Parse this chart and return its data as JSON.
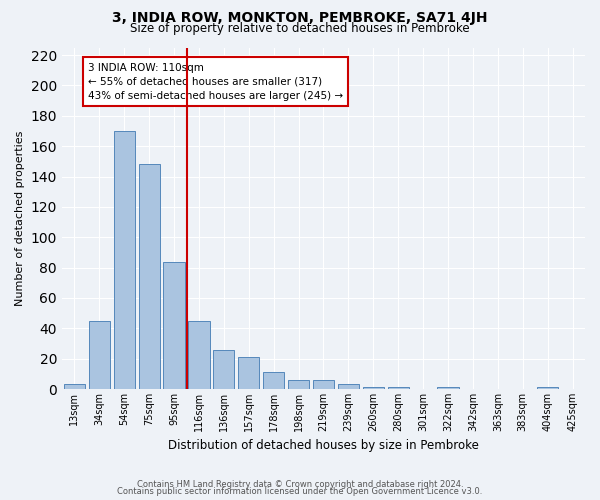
{
  "title": "3, INDIA ROW, MONKTON, PEMBROKE, SA71 4JH",
  "subtitle": "Size of property relative to detached houses in Pembroke",
  "xlabel": "Distribution of detached houses by size in Pembroke",
  "ylabel": "Number of detached properties",
  "bar_labels": [
    "13sqm",
    "34sqm",
    "54sqm",
    "75sqm",
    "95sqm",
    "116sqm",
    "136sqm",
    "157sqm",
    "178sqm",
    "198sqm",
    "219sqm",
    "239sqm",
    "260sqm",
    "280sqm",
    "301sqm",
    "322sqm",
    "342sqm",
    "363sqm",
    "383sqm",
    "404sqm",
    "425sqm"
  ],
  "bar_values": [
    3,
    45,
    170,
    148,
    84,
    45,
    26,
    21,
    11,
    6,
    6,
    3,
    1,
    1,
    0,
    1,
    0,
    0,
    0,
    1,
    0
  ],
  "bar_color": "#aac4e0",
  "bar_edgecolor": "#5588bb",
  "vline_x": 4.52,
  "vline_color": "#cc0000",
  "annotation_text": "3 INDIA ROW: 110sqm\n← 55% of detached houses are smaller (317)\n43% of semi-detached houses are larger (245) →",
  "annotation_box_edgecolor": "#cc0000",
  "ylim": [
    0,
    225
  ],
  "yticks": [
    0,
    20,
    40,
    60,
    80,
    100,
    120,
    140,
    160,
    180,
    200,
    220
  ],
  "background_color": "#eef2f7",
  "grid_color": "#ffffff",
  "footer_line1": "Contains HM Land Registry data © Crown copyright and database right 2024.",
  "footer_line2": "Contains public sector information licensed under the Open Government Licence v3.0."
}
